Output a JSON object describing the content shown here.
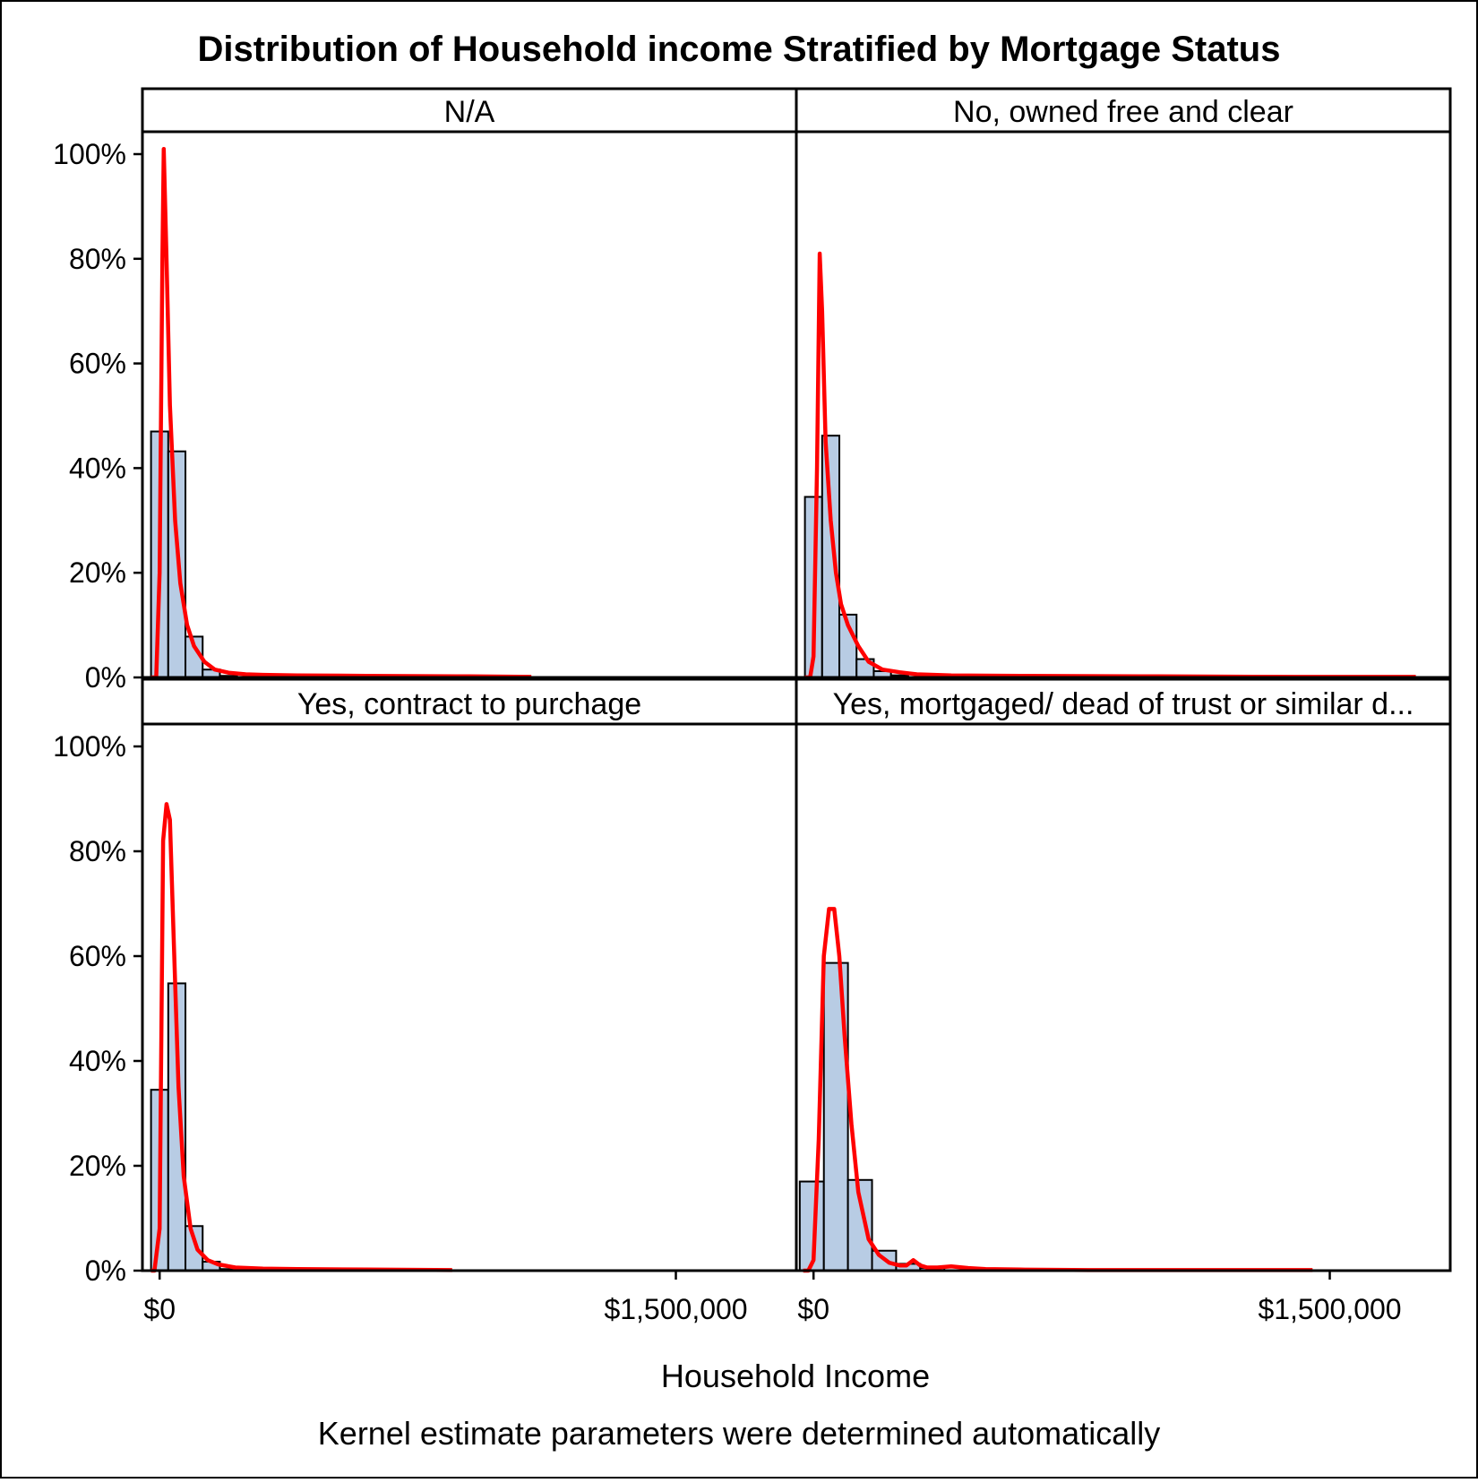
{
  "chart_data": {
    "type": "bar",
    "title": "Distribution of Household income Stratified by Mortgage Status",
    "xlabel": "Household Income",
    "ylabel": "",
    "footnote": "Kernel estimate parameters were determined automatically",
    "xlim": [
      -50000,
      1850000
    ],
    "ylim": [
      0,
      100
    ],
    "x_ticks": [
      0,
      1500000
    ],
    "x_tick_labels": [
      "$0",
      "$1,500,000"
    ],
    "y_ticks": [
      0,
      20,
      40,
      60,
      80,
      100
    ],
    "y_tick_labels": [
      "0%",
      "20%",
      "40%",
      "60%",
      "80%",
      "100%"
    ],
    "grid": false,
    "colors": {
      "bar_fill": "#b8cce4",
      "bar_stroke": "#000000",
      "kernel_line": "#ff0000",
      "frame": "#000000"
    },
    "panels": [
      {
        "label": "N/A",
        "histogram": {
          "bin_width": 50000,
          "bin_starts": [
            -25000,
            25000,
            75000,
            125000,
            175000
          ],
          "values": [
            47,
            43.2,
            7.8,
            1.5,
            0.3
          ]
        },
        "kernel": {
          "x": [
            -25000,
            -10000,
            0,
            8000,
            12000,
            20000,
            30000,
            45000,
            60000,
            80000,
            100000,
            130000,
            160000,
            200000,
            250000,
            300000,
            400000,
            600000,
            900000,
            1080000
          ],
          "y": [
            0,
            0,
            20,
            80,
            101,
            80,
            52,
            30,
            18,
            10,
            6,
            3,
            1.5,
            0.9,
            0.6,
            0.5,
            0.4,
            0.3,
            0.2,
            0.1
          ]
        }
      },
      {
        "label": "No, owned free and clear",
        "histogram": {
          "bin_width": 50000,
          "bin_starts": [
            -25000,
            25000,
            75000,
            125000,
            175000,
            225000
          ],
          "values": [
            34.5,
            46.2,
            12,
            3.5,
            1.2,
            0.4
          ]
        },
        "kernel": {
          "x": [
            -25000,
            -10000,
            0,
            10000,
            18000,
            25000,
            35000,
            50000,
            65000,
            80000,
            100000,
            130000,
            160000,
            200000,
            250000,
            300000,
            400000,
            600000,
            1000000,
            1400000,
            1750000
          ],
          "y": [
            0,
            0,
            4,
            40,
            81,
            70,
            45,
            30,
            20,
            14,
            10,
            6,
            3,
            1.5,
            1,
            0.6,
            0.4,
            0.3,
            0.2,
            0.1,
            0.1
          ]
        }
      },
      {
        "label": "Yes, contract to purchage",
        "histogram": {
          "bin_width": 50000,
          "bin_starts": [
            -25000,
            25000,
            75000,
            125000,
            175000
          ],
          "values": [
            34.5,
            54.8,
            8.5,
            1.7,
            0.3
          ]
        },
        "kernel": {
          "x": [
            -25000,
            -15000,
            0,
            10000,
            20000,
            30000,
            40000,
            55000,
            70000,
            90000,
            110000,
            140000,
            170000,
            220000,
            300000,
            400000,
            600000,
            850000
          ],
          "y": [
            0,
            0,
            8,
            82,
            89,
            86,
            65,
            35,
            18,
            8,
            4,
            2,
            1.2,
            0.6,
            0.4,
            0.3,
            0.2,
            0.1
          ]
        }
      },
      {
        "label": "Yes, mortgaged/ dead of trust or similar d...",
        "histogram": {
          "bin_width": 70000,
          "bin_starts": [
            -40000,
            30000,
            100000,
            170000,
            240000,
            310000
          ],
          "values": [
            17,
            58.7,
            17.3,
            3.8,
            1.3,
            0.5
          ]
        },
        "kernel": {
          "x": [
            -30000,
            -15000,
            0,
            15000,
            30000,
            45000,
            60000,
            75000,
            90000,
            110000,
            130000,
            160000,
            190000,
            220000,
            250000,
            270000,
            290000,
            310000,
            330000,
            360000,
            400000,
            450000,
            500000,
            600000,
            800000,
            1100000,
            1450000
          ],
          "y": [
            0,
            0,
            2,
            25,
            60,
            69,
            69,
            60,
            45,
            28,
            15,
            6,
            3,
            1.5,
            1,
            1,
            2,
            1,
            0.6,
            0.6,
            0.8,
            0.5,
            0.3,
            0.2,
            0.1,
            0.1,
            0.1
          ]
        }
      }
    ]
  }
}
